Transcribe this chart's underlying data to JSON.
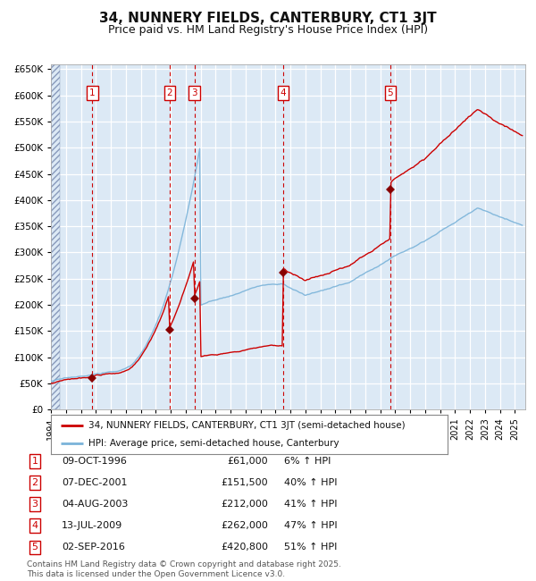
{
  "title": "34, NUNNERY FIELDS, CANTERBURY, CT1 3JT",
  "subtitle": "Price paid vs. HM Land Registry's House Price Index (HPI)",
  "background_color": "#dce9f5",
  "plot_bg_color": "#dce9f5",
  "grid_color": "#ffffff",
  "hpi_line_color": "#7ab3d9",
  "price_line_color": "#cc0000",
  "sale_marker_color": "#880000",
  "vline_color": "#cc0000",
  "ylim": [
    0,
    660000
  ],
  "ytick_step": 50000,
  "year_start": 1994,
  "year_end": 2025,
  "sales": [
    {
      "num": 1,
      "date": "09-OCT-1996",
      "year": 1996.77,
      "price": 61000,
      "hpi_pct": "6%"
    },
    {
      "num": 2,
      "date": "07-DEC-2001",
      "year": 2001.93,
      "price": 151500,
      "hpi_pct": "40%"
    },
    {
      "num": 3,
      "date": "04-AUG-2003",
      "year": 2003.59,
      "price": 212000,
      "hpi_pct": "41%"
    },
    {
      "num": 4,
      "date": "13-JUL-2009",
      "year": 2009.53,
      "price": 262000,
      "hpi_pct": "47%"
    },
    {
      "num": 5,
      "date": "02-SEP-2016",
      "year": 2016.67,
      "price": 420800,
      "hpi_pct": "51%"
    }
  ],
  "legend1": "34, NUNNERY FIELDS, CANTERBURY, CT1 3JT (semi-detached house)",
  "legend2": "HPI: Average price, semi-detached house, Canterbury",
  "footnote": "Contains HM Land Registry data © Crown copyright and database right 2025.\nThis data is licensed under the Open Government Licence v3.0."
}
